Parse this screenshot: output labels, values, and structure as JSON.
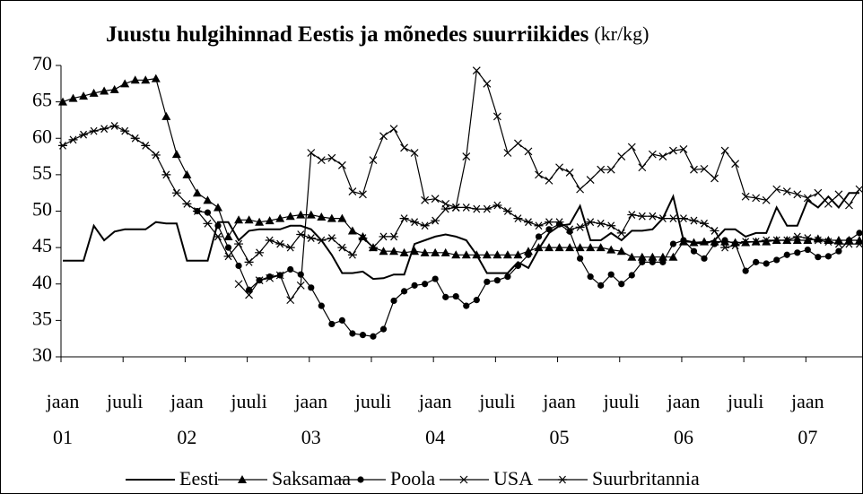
{
  "chart_data": {
    "type": "line",
    "title": "Juustu hulgihinnad Eestis ja mõnedes suurriikides",
    "title_unit": "(kr/kg)",
    "categories": [
      "jaan 01",
      null,
      null,
      null,
      null,
      null,
      "juuli",
      null,
      null,
      null,
      null,
      null,
      "jaan 02",
      null,
      null,
      null,
      null,
      null,
      "juuli",
      null,
      null,
      null,
      null,
      null,
      "jaan 03",
      null,
      null,
      null,
      null,
      null,
      "juuli",
      null,
      null,
      null,
      null,
      null,
      "jaan 04",
      null,
      null,
      null,
      null,
      null,
      "juuli",
      null,
      null,
      null,
      null,
      null,
      "jaan 05",
      null,
      null,
      null,
      null,
      null,
      "juuli",
      null,
      null,
      null,
      null,
      null,
      "jaan 06",
      null,
      null,
      null,
      null,
      null,
      "juuli",
      null,
      null,
      null,
      null,
      null,
      "jaan 07",
      null,
      null,
      null,
      null,
      null
    ],
    "ylim": [
      30,
      70
    ],
    "yticks": [
      30,
      35,
      40,
      45,
      50,
      55,
      60,
      65,
      70
    ],
    "grid": false,
    "legend": "bottom",
    "series": [
      {
        "name": "Eesti",
        "color": "#000000",
        "marker": "none",
        "values": [
          43.2,
          43.2,
          43.2,
          48,
          46,
          47.2,
          47.5,
          47.5,
          47.5,
          48.5,
          48.3,
          48.3,
          43.2,
          43.2,
          43.2,
          48.5,
          48.5,
          46,
          47.3,
          47.5,
          47.5,
          47.5,
          48,
          48,
          47.5,
          46,
          44,
          41.5,
          41.5,
          41.7,
          40.7,
          40.8,
          41.3,
          41.3,
          45.5,
          46,
          46.5,
          46.8,
          46.5,
          46,
          44,
          41.5,
          41.5,
          41.5,
          43,
          42.2,
          44.8,
          47,
          48,
          48.2,
          50.7,
          46,
          46,
          47,
          46,
          47.3,
          47.3,
          47.5,
          49,
          52,
          46,
          45.7,
          45.5,
          46,
          47.5,
          47.5,
          46.5,
          47,
          47,
          50.5,
          48,
          48,
          51.5,
          50.5,
          52,
          50.5,
          52.5,
          52.5
        ]
      },
      {
        "name": "Saksamaa",
        "color": "#000000",
        "marker": "triangle",
        "values": [
          65,
          65.5,
          65.8,
          66.2,
          66.5,
          66.7,
          67.5,
          68,
          68,
          68.2,
          63,
          57.8,
          55,
          52.5,
          51.5,
          50.5,
          46.5,
          48.8,
          48.8,
          48.5,
          48.7,
          49,
          49.3,
          49.5,
          49.5,
          49.2,
          49,
          49,
          47.3,
          46.5,
          45,
          44.5,
          44.5,
          44.3,
          44.5,
          44.3,
          44.3,
          44.3,
          44,
          44,
          44,
          44,
          44,
          44,
          44,
          44.5,
          45,
          45,
          45,
          45,
          45,
          45,
          45,
          44.7,
          44.5,
          43.7,
          43.7,
          43.7,
          43.7,
          43.7,
          45.8,
          45.7,
          45.8,
          45.8,
          45.8,
          45.7,
          45.7,
          45.8,
          45.8,
          46,
          46,
          46,
          46,
          46.2,
          46,
          46,
          46,
          46
        ]
      },
      {
        "name": "Poola",
        "color": "#000000",
        "marker": "circle",
        "values": [
          null,
          null,
          null,
          null,
          null,
          null,
          null,
          null,
          null,
          null,
          null,
          null,
          null,
          50,
          49.8,
          48,
          45,
          42.5,
          39.2,
          40.5,
          41,
          41.2,
          42,
          41.3,
          39.5,
          37,
          34.5,
          35,
          33.2,
          33,
          32.8,
          33.8,
          37.7,
          39,
          39.8,
          40,
          40.7,
          38.2,
          38.3,
          37,
          37.8,
          40.3,
          40.5,
          41,
          42.5,
          44,
          46.5,
          47.5,
          48.2,
          47.2,
          43.5,
          41,
          39.8,
          41.3,
          40,
          41.2,
          43,
          43,
          43,
          45.5,
          46,
          44.5,
          43.5,
          45.5,
          46,
          45.5,
          41.8,
          43,
          42.8,
          43.3,
          44,
          44.3,
          44.7,
          43.7,
          43.8,
          44.5,
          46,
          47
        ]
      },
      {
        "name": "USA",
        "color": "#000000",
        "marker": "x",
        "values": [
          null,
          null,
          null,
          null,
          null,
          null,
          null,
          null,
          null,
          null,
          null,
          null,
          null,
          null,
          null,
          null,
          null,
          40,
          38.5,
          40.5,
          40.8,
          41.2,
          37.8,
          39.8,
          58,
          57,
          57.3,
          56.3,
          52.7,
          52.3,
          57,
          60.3,
          61.3,
          58.7,
          58,
          51.5,
          51.7,
          51,
          50.5,
          57.5,
          69.3,
          67.5,
          63,
          58,
          59.3,
          58.2,
          55,
          54.2,
          56,
          55.3,
          53,
          54.3,
          55.7,
          55.7,
          57.5,
          58.8,
          56,
          57.8,
          57.5,
          58.3,
          58.5,
          55.7,
          55.8,
          54.5,
          58.3,
          56.5,
          52,
          51.8,
          51.5,
          53,
          52.7,
          52.3,
          51.8,
          52.5,
          51,
          52.3,
          50.8,
          53
        ]
      },
      {
        "name": "Suurbritannia",
        "color": "#000000",
        "marker": "star",
        "values": [
          59,
          59.8,
          60.5,
          61,
          61.3,
          61.7,
          61,
          60,
          59,
          57.7,
          55,
          52.5,
          51,
          50,
          48.3,
          46.5,
          43.8,
          45.5,
          43,
          44.3,
          46,
          45.5,
          45,
          46.8,
          46.3,
          46,
          46.3,
          45,
          44,
          46.3,
          45,
          46.5,
          46.5,
          49,
          48.5,
          48,
          48.7,
          50.3,
          50.5,
          50.5,
          50.3,
          50.3,
          50.8,
          50,
          49,
          48.5,
          48,
          48.5,
          48.5,
          47.5,
          47.8,
          48.5,
          48.3,
          48,
          47,
          49.5,
          49.3,
          49.3,
          49,
          49,
          49,
          48.7,
          48.3,
          47.3,
          45,
          45.3,
          45.8,
          45.8,
          46,
          46,
          46,
          46.5,
          46.3,
          46,
          45.8,
          45.5,
          45.5,
          45.5
        ]
      }
    ]
  }
}
